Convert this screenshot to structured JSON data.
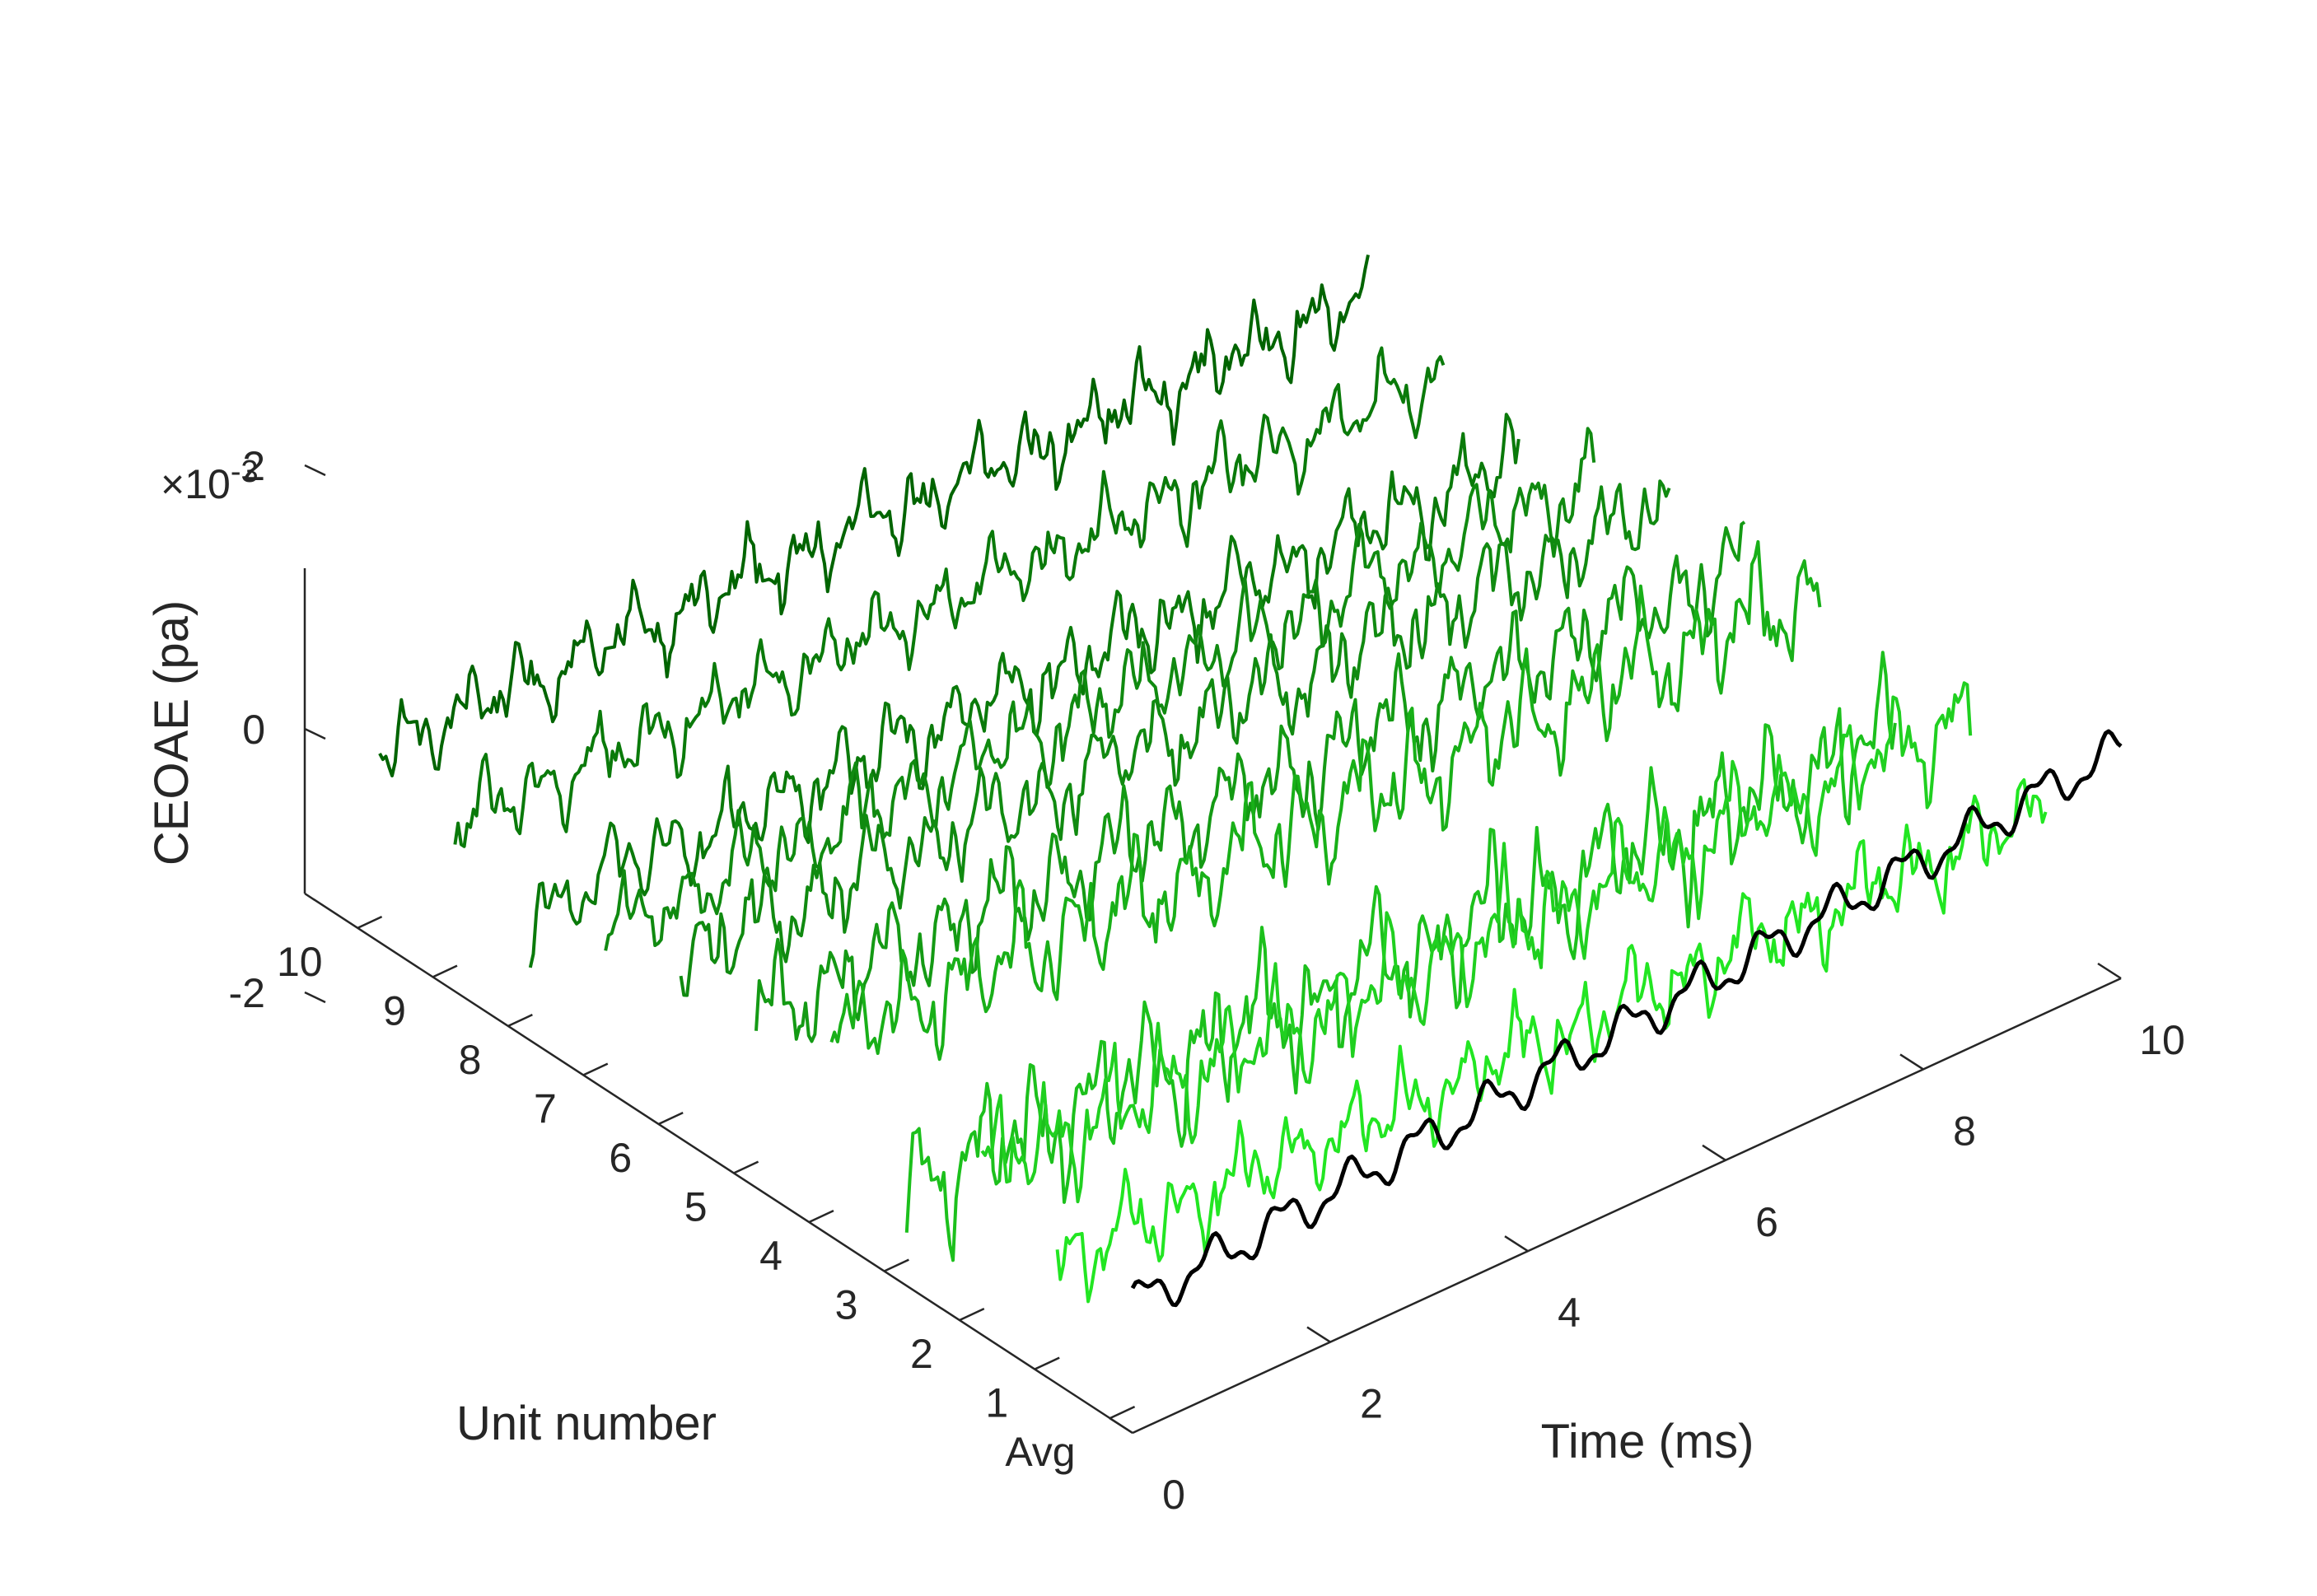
{
  "chart_data": {
    "type": "line",
    "view": "3d-waterfall",
    "title": "",
    "xlabel": "Time (ms)",
    "ylabel": "Unit number",
    "zlabel": "CEOAE (pa)",
    "z_exponent_label": "×10",
    "z_exponent_power": "-3",
    "xlim": [
      0,
      10
    ],
    "zlim": [
      -2.8,
      2.4
    ],
    "x_ticks": [
      "0",
      "2",
      "4",
      "6",
      "8",
      "10"
    ],
    "y_ticks": [
      "Avg",
      "1",
      "2",
      "3",
      "4",
      "5",
      "6",
      "7",
      "8",
      "9",
      "10"
    ],
    "z_ticks": [
      "-2",
      "0",
      "2"
    ],
    "grid": false,
    "series": [
      {
        "label": "10",
        "color": "#006400",
        "z_offset_e3": 0.0,
        "amp_e3": 0.55
      },
      {
        "label": "9",
        "color": "#0a7a0a",
        "z_offset_e3": -0.4,
        "amp_e3": 0.55
      },
      {
        "label": "8",
        "color": "#0a7a0a",
        "z_offset_e3": -0.9,
        "amp_e3": 0.6
      },
      {
        "label": "7",
        "color": "#108a10",
        "z_offset_e3": -0.5,
        "amp_e3": 0.6
      },
      {
        "label": "6",
        "color": "#108a10",
        "z_offset_e3": -0.2,
        "amp_e3": 0.65
      },
      {
        "label": "5",
        "color": "#149a14",
        "z_offset_e3": -0.3,
        "amp_e3": 0.7
      },
      {
        "label": "4",
        "color": "#18b018",
        "z_offset_e3": 0.0,
        "amp_e3": 0.8
      },
      {
        "label": "3",
        "color": "#1cc01c",
        "z_offset_e3": -1.3,
        "amp_e3": 0.9
      },
      {
        "label": "2",
        "color": "#20d020",
        "z_offset_e3": -0.4,
        "amp_e3": 0.75
      },
      {
        "label": "1",
        "color": "#22e622",
        "z_offset_e3": -1.0,
        "amp_e3": 0.6
      },
      {
        "label": "Avg",
        "color": "#000000",
        "z_offset_e3": -0.9,
        "amp_e3": 0.25
      }
    ]
  }
}
